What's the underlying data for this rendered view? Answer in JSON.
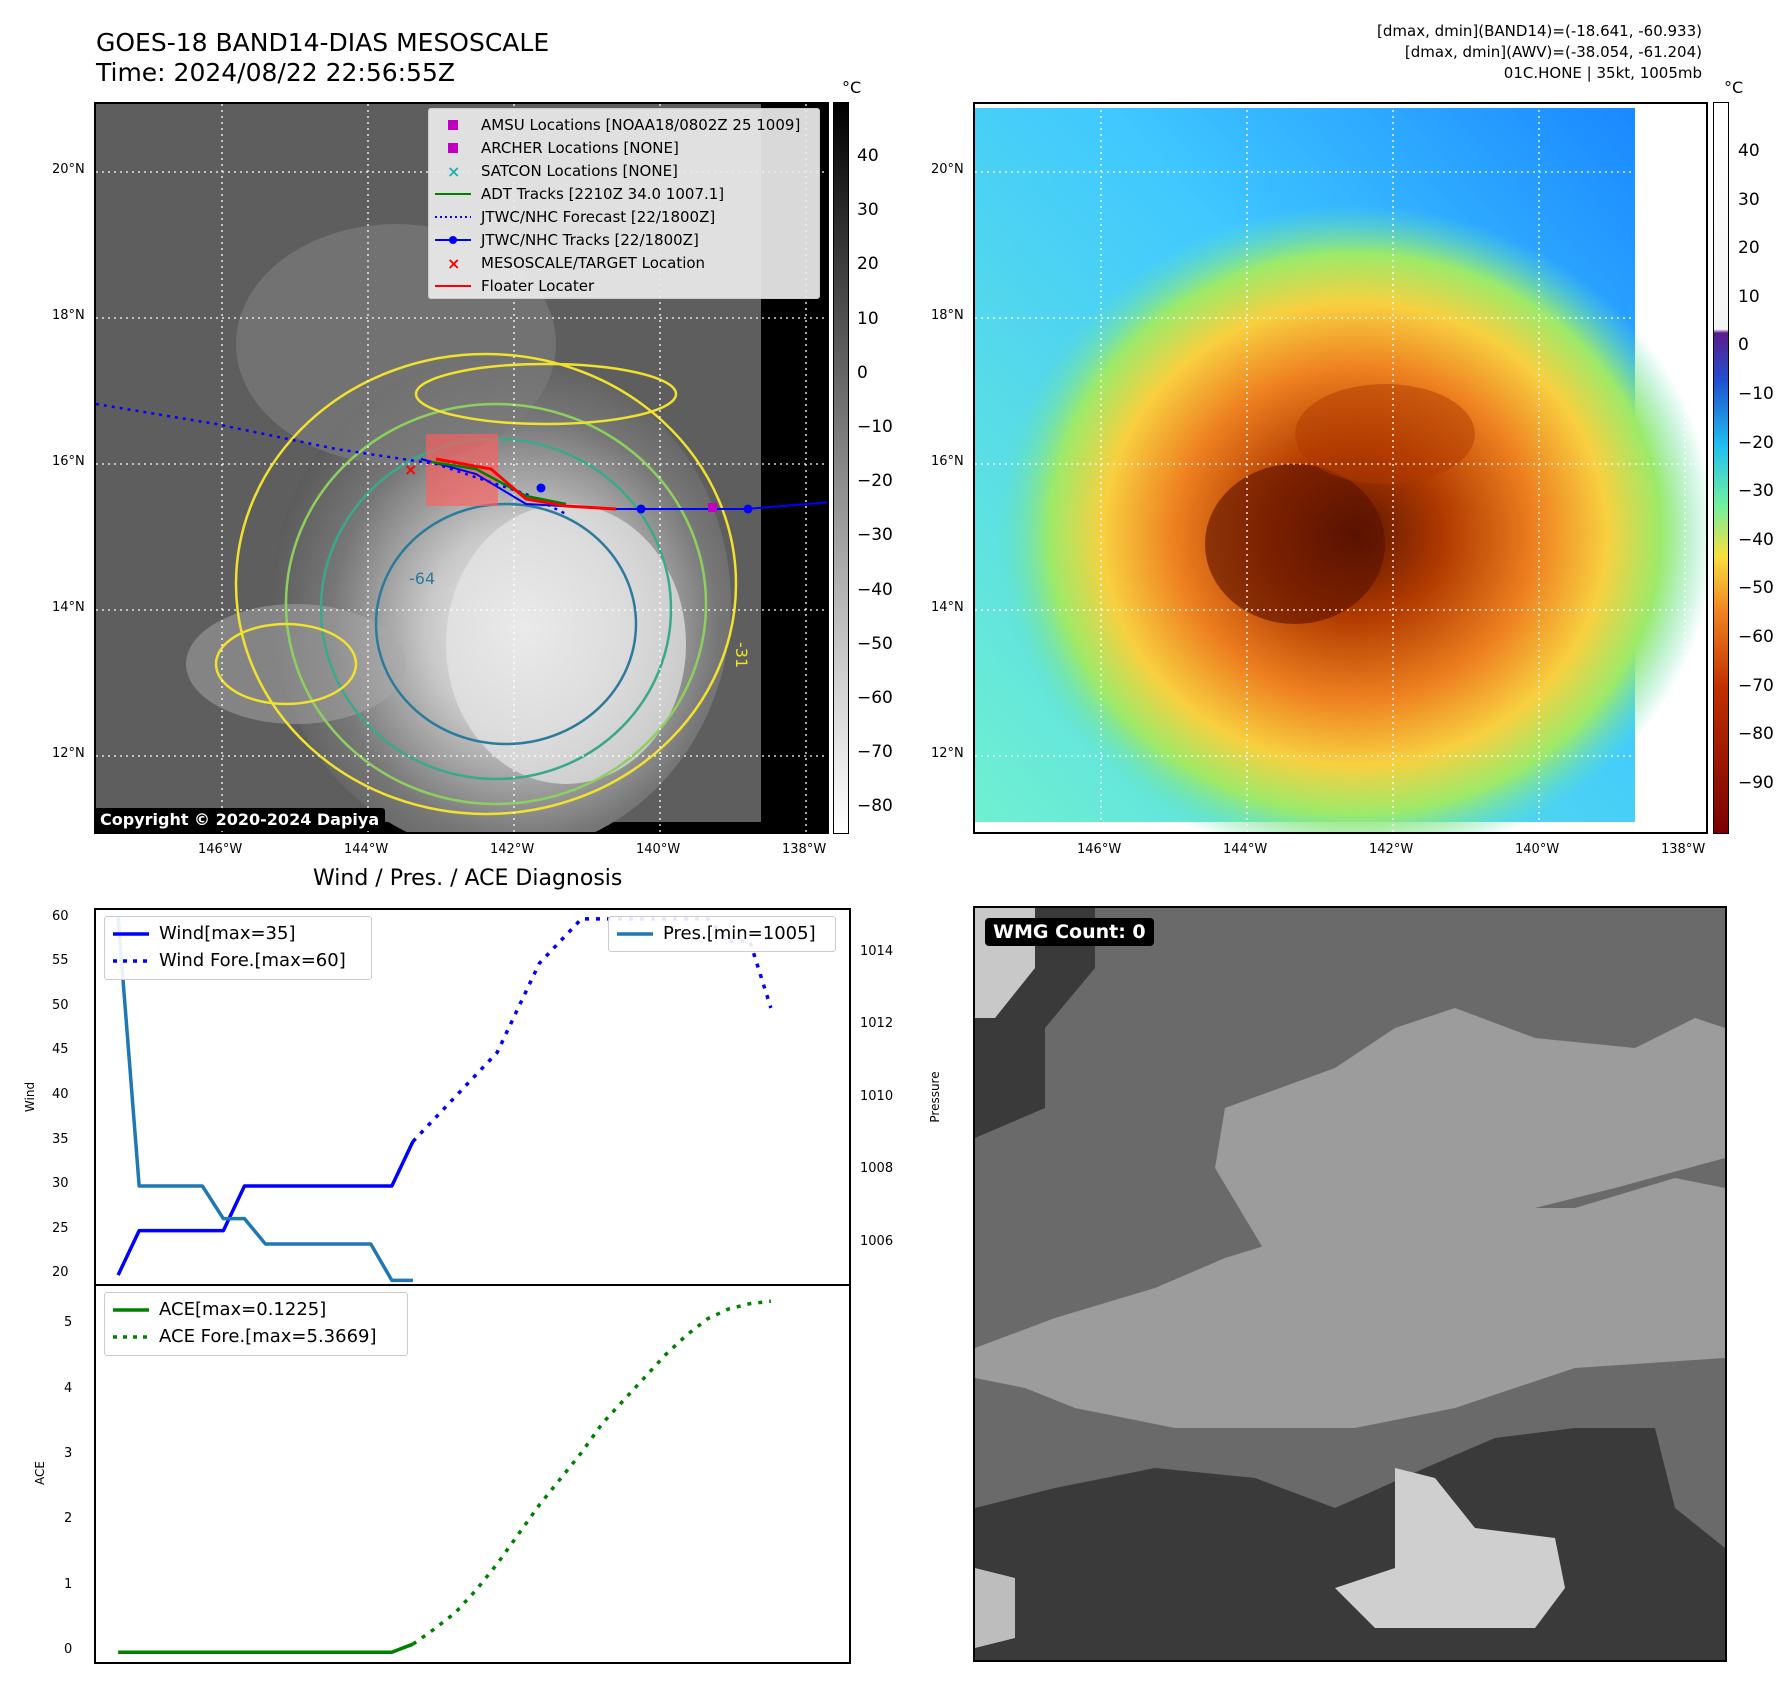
{
  "header": {
    "title": "GOES-18 BAND14-DIAS MESOSCALE",
    "time": "Time: 2024/08/22 22:56:55Z",
    "info_lines": [
      "[dmax, dmin](BAND14)=(-18.641, -60.933)",
      "[dmax, dmin](AWV)=(-38.054, -61.204)",
      "01C.HONE | 35kt, 1005mb"
    ]
  },
  "map_axes": {
    "lon_ticks": [
      "146°W",
      "144°W",
      "142°W",
      "140°W",
      "138°W"
    ],
    "lat_ticks": [
      "20°N",
      "18°N",
      "16°N",
      "14°N",
      "12°N"
    ]
  },
  "colorbar_gray": {
    "unit": "°C",
    "ticks": [
      "40",
      "30",
      "20",
      "10",
      "0",
      "−10",
      "−20",
      "−30",
      "−40",
      "−50",
      "−60",
      "−70",
      "−80"
    ]
  },
  "colorbar_color": {
    "unit": "°C",
    "ticks": [
      "40",
      "30",
      "20",
      "10",
      "0",
      "−10",
      "−20",
      "−30",
      "−40",
      "−50",
      "−60",
      "−70",
      "−80",
      "−90"
    ]
  },
  "legend_map": [
    {
      "label": "AMSU Locations [NOAA18/0802Z 25 1009]",
      "color": "#c000c0",
      "symbol": "square"
    },
    {
      "label": "ARCHER Locations [NONE]",
      "color": "#c000c0",
      "symbol": "square"
    },
    {
      "label": "SATCON Locations [NONE]",
      "color": "#20b0b0",
      "symbol": "x"
    },
    {
      "label": "ADT Tracks [2210Z 34.0 1007.1]",
      "color": "#008000",
      "symbol": "line"
    },
    {
      "label": "JTWC/NHC Forecast [22/1800Z]",
      "color": "#0000ff",
      "symbol": "dotted"
    },
    {
      "label": "JTWC/NHC Tracks [22/1800Z]",
      "color": "#0000ff",
      "symbol": "line-dot"
    },
    {
      "label": "MESOSCALE/TARGET Location",
      "color": "#ff0000",
      "symbol": "x"
    },
    {
      "label": "Floater Locater",
      "color": "#ff0000",
      "symbol": "line"
    }
  ],
  "copyright": "Copyright © 2020-2024 Dapiya",
  "contour_labels": [
    "-64",
    "-31"
  ],
  "wmg_label": "WMG Count: 0",
  "chart_data": [
    {
      "type": "line",
      "title": "Wind / Pres. / ACE Diagnosis",
      "ylabel": "Wind",
      "y2label": "Pressure",
      "ylim": [
        19,
        61
      ],
      "y2lim": [
        1004.9,
        1015.2
      ],
      "yticks": [
        20,
        25,
        30,
        35,
        40,
        45,
        50,
        55,
        60
      ],
      "y2ticks": [
        1006,
        1008,
        1010,
        1012,
        1014
      ],
      "series": [
        {
          "name": "Wind[max=35]",
          "axis": "left",
          "color": "#0000ff",
          "style": "solid",
          "x": [
            0,
            1,
            2,
            3,
            4,
            5,
            6,
            7,
            8,
            9,
            10,
            11,
            12,
            13,
            14
          ],
          "y": [
            20,
            25,
            25,
            25,
            25,
            25,
            30,
            30,
            30,
            30,
            30,
            30,
            30,
            30,
            35
          ]
        },
        {
          "name": "Wind Fore.[max=60]",
          "axis": "left",
          "color": "#0000ff",
          "style": "dotted",
          "x": [
            14,
            15,
            16,
            17,
            18,
            19,
            20,
            21,
            22,
            23,
            24,
            25,
            26,
            27,
            28,
            29,
            30,
            31
          ],
          "y": [
            35,
            37.5,
            40,
            42.5,
            45,
            50,
            55,
            57.5,
            60,
            60,
            60,
            60,
            60,
            60,
            60,
            57.5,
            57.5,
            50
          ]
        },
        {
          "name": "Pres.[min=1005]",
          "axis": "right",
          "color": "#1f77b4",
          "style": "solid",
          "x": [
            0,
            1,
            2,
            3,
            4,
            5,
            6,
            7,
            8,
            9,
            10,
            11,
            12,
            13,
            14
          ],
          "y": [
            1015,
            1007.6,
            1007.6,
            1007.6,
            1007.6,
            1006.7,
            1006.7,
            1006,
            1006,
            1006,
            1006,
            1006,
            1006,
            1005,
            1005
          ]
        }
      ]
    },
    {
      "type": "line",
      "ylabel": "ACE",
      "ylim": [
        -0.15,
        5.6
      ],
      "yticks": [
        0,
        1,
        2,
        3,
        4,
        5
      ],
      "series": [
        {
          "name": "ACE[max=0.1225]",
          "color": "#008000",
          "style": "solid",
          "x": [
            0,
            13,
            14
          ],
          "y": [
            0,
            0,
            0.1225
          ]
        },
        {
          "name": "ACE Fore.[max=5.3669]",
          "color": "#008000",
          "style": "dotted",
          "x": [
            14,
            15,
            16,
            17,
            18,
            19,
            20,
            21,
            22,
            23,
            24,
            25,
            26,
            27,
            28,
            29,
            30,
            31
          ],
          "y": [
            0.1225,
            0.35,
            0.6,
            0.95,
            1.35,
            1.8,
            2.25,
            2.65,
            3.05,
            3.5,
            3.85,
            4.2,
            4.55,
            4.85,
            5.1,
            5.25,
            5.33,
            5.3669
          ]
        }
      ]
    }
  ]
}
